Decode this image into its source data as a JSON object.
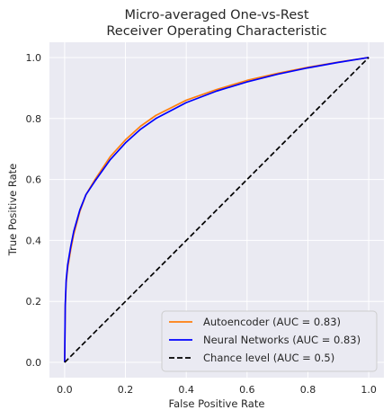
{
  "chart_data": {
    "type": "line",
    "title": [
      "Micro-averaged One-vs-Rest",
      "Receiver Operating Characteristic"
    ],
    "xlabel": "False Positive Rate",
    "ylabel": "True Positive Rate",
    "xlim": [
      -0.05,
      1.05
    ],
    "ylim": [
      -0.05,
      1.05
    ],
    "xticks": [
      0.0,
      0.2,
      0.4,
      0.6,
      0.8,
      1.0
    ],
    "yticks": [
      0.0,
      0.2,
      0.4,
      0.6,
      0.8,
      1.0
    ],
    "xtick_labels": [
      "0.0",
      "0.2",
      "0.4",
      "0.6",
      "0.8",
      "1.0"
    ],
    "ytick_labels": [
      "0.0",
      "0.2",
      "0.4",
      "0.6",
      "0.8",
      "1.0"
    ],
    "grid": true,
    "legend_position": "lower-right",
    "background_color": "#eaeaf2",
    "series": [
      {
        "name": "Autoencoder (AUC = 0.83)",
        "color": "#ff7f0e",
        "dash": "solid",
        "x": [
          0.0,
          0.002,
          0.005,
          0.01,
          0.02,
          0.03,
          0.05,
          0.07,
          0.1,
          0.15,
          0.2,
          0.25,
          0.3,
          0.4,
          0.5,
          0.6,
          0.7,
          0.8,
          0.9,
          1.0
        ],
        "y": [
          0.0,
          0.18,
          0.26,
          0.31,
          0.37,
          0.42,
          0.495,
          0.55,
          0.6,
          0.675,
          0.73,
          0.775,
          0.81,
          0.86,
          0.895,
          0.925,
          0.948,
          0.968,
          0.985,
          1.0
        ]
      },
      {
        "name": "Neural Networks (AUC = 0.83)",
        "color": "#0000ff",
        "dash": "solid",
        "x": [
          0.0,
          0.002,
          0.005,
          0.01,
          0.02,
          0.03,
          0.05,
          0.07,
          0.1,
          0.15,
          0.2,
          0.25,
          0.3,
          0.4,
          0.5,
          0.6,
          0.7,
          0.8,
          0.9,
          1.0
        ],
        "y": [
          0.0,
          0.19,
          0.27,
          0.32,
          0.38,
          0.43,
          0.5,
          0.55,
          0.595,
          0.665,
          0.72,
          0.765,
          0.8,
          0.852,
          0.89,
          0.92,
          0.945,
          0.966,
          0.984,
          1.0
        ]
      },
      {
        "name": "Chance level (AUC = 0.5)",
        "color": "#000000",
        "dash": "dashed",
        "x": [
          0.0,
          1.0
        ],
        "y": [
          0.0,
          1.0
        ]
      }
    ]
  }
}
